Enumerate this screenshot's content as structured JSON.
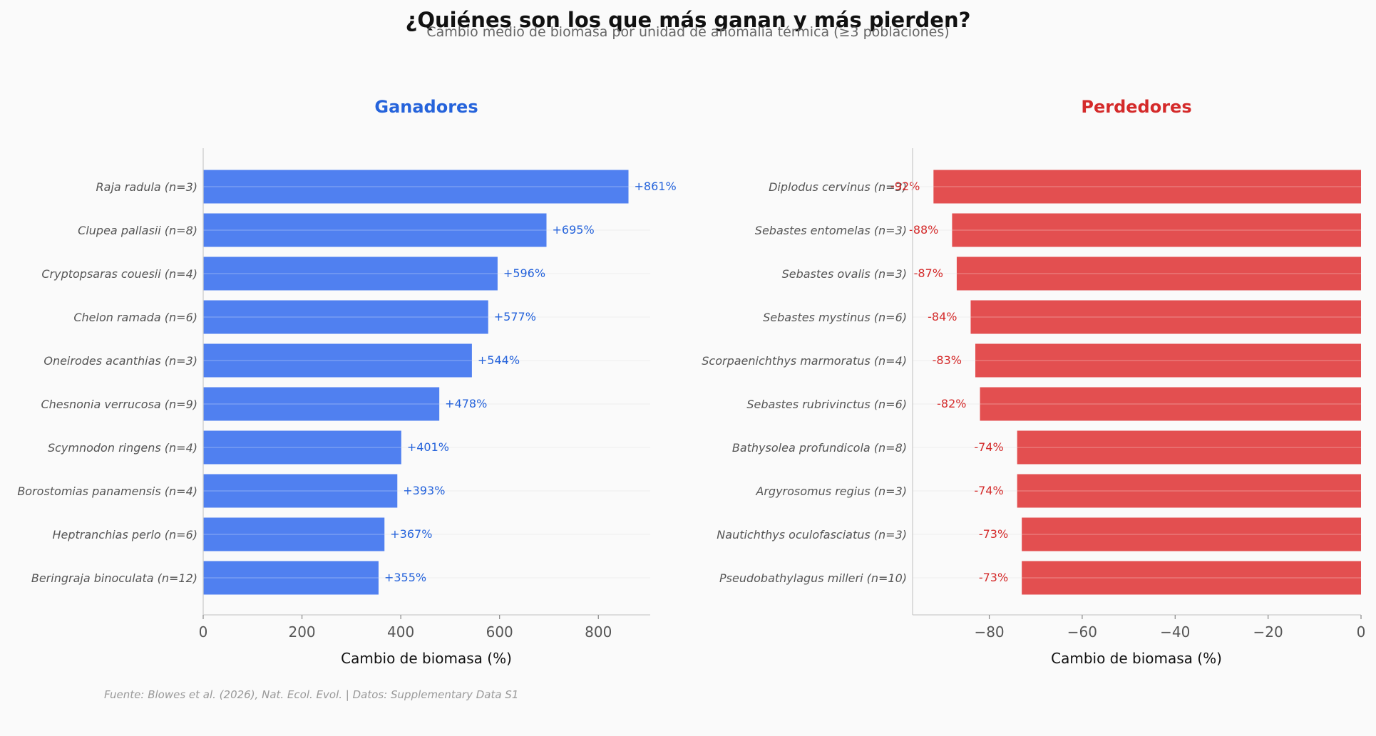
{
  "title": "¿Quiénes son los que más ganan y más pierden?",
  "subtitle": "Cambio medio de biomasa por unidad de anomalía térmica (≥3 poblaciones)",
  "footer": "Fuente: Blowes et al. (2026), Nat. Ecol. Evol. | Datos: Supplementary Data S1",
  "colors": {
    "winner_bar": "#5080f0",
    "winner_text": "#2563db",
    "loser_bar": "#e34f50",
    "loser_text": "#d42a2a",
    "axis": "#cccccc",
    "grid": "#eeeeee"
  },
  "chart_data": [
    {
      "type": "bar",
      "orientation": "horizontal",
      "title": "Ganadores",
      "xlabel": "Cambio de biomasa (%)",
      "xlim": [
        0,
        905
      ],
      "xticks": [
        0,
        200,
        400,
        600,
        800
      ],
      "categories": [
        "Raja radula (n=3)",
        "Clupea pallasii (n=8)",
        "Cryptopsaras couesii (n=4)",
        "Chelon ramada (n=6)",
        "Oneirodes acanthias (n=3)",
        "Chesnonia verrucosa (n=9)",
        "Scymnodon ringens (n=4)",
        "Borostomias panamensis (n=4)",
        "Heptranchias perlo (n=6)",
        "Beringraja binoculata (n=12)"
      ],
      "values": [
        861,
        695,
        596,
        577,
        544,
        478,
        401,
        393,
        367,
        355
      ],
      "labels": [
        "+861%",
        "+695%",
        "+596%",
        "+577%",
        "+544%",
        "+478%",
        "+401%",
        "+393%",
        "+367%",
        "+355%"
      ]
    },
    {
      "type": "bar",
      "orientation": "horizontal",
      "title": "Perdedores",
      "xlabel": "Cambio de biomasa (%)",
      "xlim": [
        -96.5,
        0
      ],
      "xticks": [
        -80,
        -60,
        -40,
        -20,
        0
      ],
      "xticklabels": [
        "−80",
        "−60",
        "−40",
        "−20",
        "0"
      ],
      "categories": [
        "Diplodus cervinus (n=3)",
        "Sebastes entomelas (n=3)",
        "Sebastes ovalis (n=3)",
        "Sebastes mystinus (n=6)",
        "Scorpaenichthys marmoratus (n=4)",
        "Sebastes rubrivinctus (n=6)",
        "Bathysolea profundicola (n=8)",
        "Argyrosomus regius (n=3)",
        "Nautichthys oculofasciatus (n=3)",
        "Pseudobathylagus milleri (n=10)"
      ],
      "values": [
        -92,
        -88,
        -87,
        -84,
        -83,
        -82,
        -74,
        -74,
        -73,
        -73
      ],
      "labels": [
        "-92%",
        "-88%",
        "-87%",
        "-84%",
        "-83%",
        "-82%",
        "-74%",
        "-74%",
        "-73%",
        "-73%"
      ]
    }
  ]
}
